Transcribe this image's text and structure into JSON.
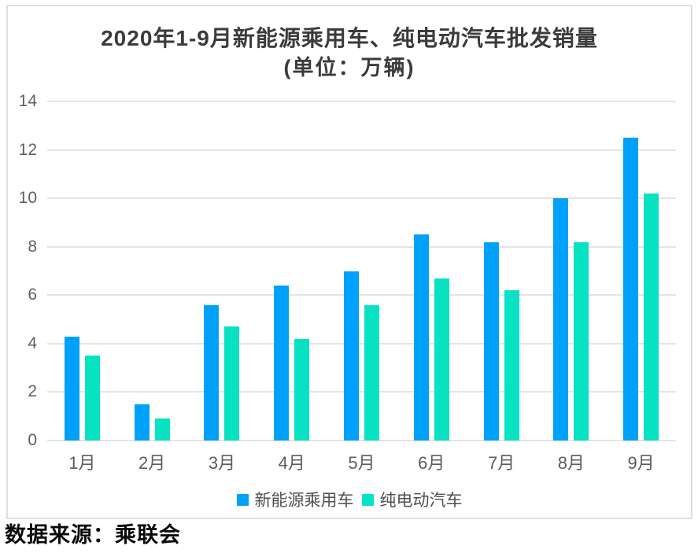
{
  "chart_data": {
    "type": "bar",
    "title": "2020年1-9月新能源乘用车、纯电动汽车批发销量",
    "subtitle": "(单位：万辆)",
    "categories": [
      "1月",
      "2月",
      "3月",
      "4月",
      "5月",
      "6月",
      "7月",
      "8月",
      "9月"
    ],
    "series": [
      {
        "name": "新能源乘用车",
        "color": "#00A1FB",
        "values": [
          4.3,
          1.5,
          5.6,
          6.4,
          7.0,
          8.5,
          8.2,
          10.0,
          12.5
        ]
      },
      {
        "name": "纯电动汽车",
        "color": "#06E2C2",
        "values": [
          3.5,
          0.9,
          4.7,
          4.2,
          5.6,
          6.7,
          6.2,
          8.2,
          10.2
        ]
      }
    ],
    "ylim": [
      0,
      14
    ],
    "yticks": [
      0,
      2,
      4,
      6,
      8,
      10,
      12,
      14
    ],
    "grid": true,
    "legend_position": "bottom"
  },
  "source_note": "数据来源：乘联会",
  "colors": {
    "bar_blue": "#00A1FB",
    "bar_teal": "#06E2C2",
    "gridline": "#e4e4e4",
    "card_border": "#dfe0e3",
    "title_text": "#3b3b3b",
    "axis_text": "#5f5f5f",
    "source_text": "#0a0a0a",
    "background": "#ffffff"
  }
}
